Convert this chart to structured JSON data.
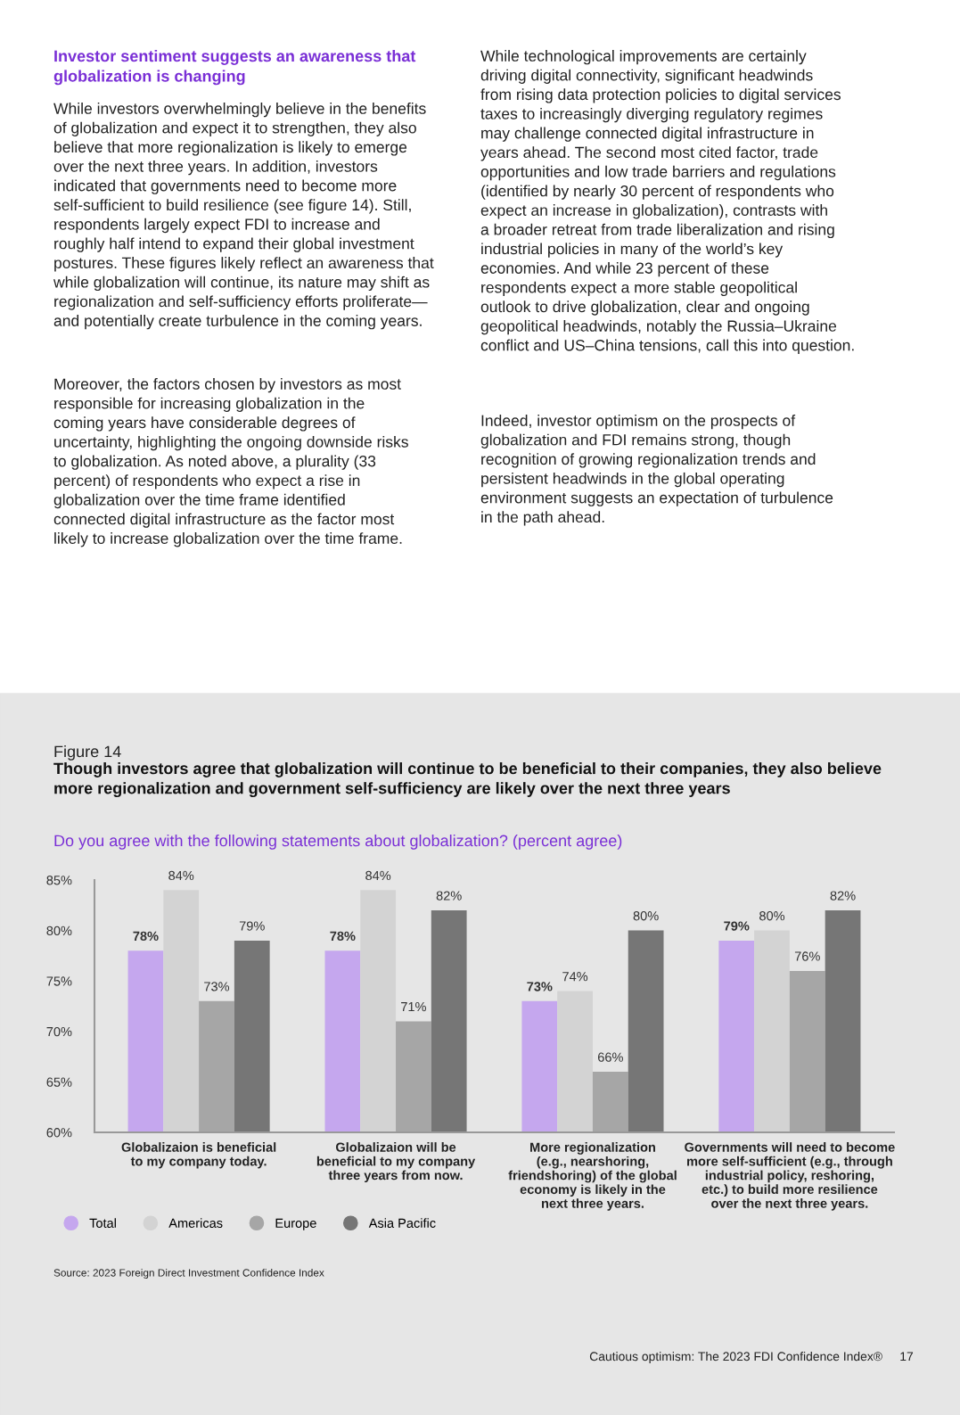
{
  "chart_data": {
    "type": "bar",
    "title": "Though investors agree that globalization will continue to be beneficial to their companies, they also believe\nmore regionalization and government self-sufficiency are likely over the next three years",
    "subtitle": "Do you agree with the following statements about globalization? (percent agree)",
    "categories": [
      "Globalizaion is beneficial\nto my company today.",
      "Globalizaion will be\nbeneficial to my company\nthree years from now.",
      "More regionalization\n(e.g., nearshoring,\nfriendshoring) of the global\neconomy is likely in the\nnext three years.",
      "Governments will need to become\nmore self-sufficient (e.g., through\nindustrial policy, reshoring,\netc.) to build more resilience\nover the next three years."
    ],
    "series": [
      {
        "name": "Total",
        "color": "#c5a7ee",
        "values": [
          78,
          78,
          73,
          79
        ],
        "value_labels": [
          "78%",
          "78%",
          "73%",
          "79%"
        ]
      },
      {
        "name": "Americas",
        "color": "#d3d3d3",
        "values": [
          84,
          84,
          74,
          80
        ],
        "value_labels": [
          "84%",
          "84%",
          "74%",
          "80%"
        ]
      },
      {
        "name": "Europe",
        "color": "#a6a6a6",
        "values": [
          73,
          71,
          66,
          76
        ],
        "value_labels": [
          "73%",
          "71%",
          "66%",
          "76%"
        ]
      },
      {
        "name": "Asia Pacific",
        "color": "#767676",
        "values": [
          79,
          82,
          80,
          82
        ],
        "value_labels": [
          "79%",
          "82%",
          "80%",
          "82%"
        ]
      }
    ],
    "ylim": [
      60,
      85
    ],
    "yticks": [
      {
        "value": 60,
        "label": "60%"
      },
      {
        "value": 65,
        "label": "65%"
      },
      {
        "value": 70,
        "label": "70%"
      },
      {
        "value": 75,
        "label": "75%"
      },
      {
        "value": 80,
        "label": "80%"
      },
      {
        "value": 85,
        "label": "85%"
      }
    ],
    "grid": false,
    "legend": "bottom left",
    "marker": "circle",
    "annotations": [
      "Investor sentiment suggests an awareness that\nglobalization is changing",
      "While investors overwhelmingly believe in the benefits\nof globalization and expect it to strengthen, they also\nbelieve that more regionalization is likely to emerge\nover the next three years. In addition, investors\nindicated that governments need to become more\nself-sufficient to build resilience (see figure 14). Still,\nrespondents largely expect FDI to increase and\nroughly half intend to expand their global investment\npostures. These figures likely reflect an awareness that\nwhile globalization will continue, its nature may shift as\nregionalization and self-sufficiency efforts proliferate—\nand potentially create turbulence in the coming years.",
      "Moreover, the factors chosen by investors as most\nresponsible for increasing globalization in the\ncoming years have considerable degrees of\nuncertainty, highlighting the ongoing downside risks\nto globalization. As noted above, a plurality (33\npercent) of respondents who expect a rise in\nglobalization over the time frame identified\nconnected digital infrastructure as the factor most\nlikely to increase globalization over the time frame.",
      "While technological improvements are certainly\ndriving digital connectivity, significant headwinds\nfrom rising data protection policies to digital services\ntaxes to increasingly diverging regulatory regimes\nmay challenge connected digital infrastructure in\nyears ahead. The second most cited factor, trade\nopportunities and low trade barriers and regulations\n(identified by nearly 30 percent of respondents who\nexpect an increase in globalization), contrasts with\na broader retreat from trade liberalization and rising\nindustrial policies in many of the world’s key\neconomies. And while 23 percent of these\nrespondents expect a more stable geopolitical\noutlook to drive globalization, clear and ongoing\ngeopolitical headwinds, notably the Russia–Ukraine\nconflict and US–China tensions, call this into question.",
      "Indeed, investor optimism on the prospects of\nglobalization and FDI remains strong, though\nrecognition of growing regionalization trends and\npersistent headwinds in the global operating\nenvironment suggests an expectation of turbulence\nin the path ahead.",
      "Figure 14",
      "Source: 2023 Foreign Direct Investment Confidence Index",
      "Cautious optimism: The 2023 FDI Confidence Index®",
      "17"
    ]
  }
}
